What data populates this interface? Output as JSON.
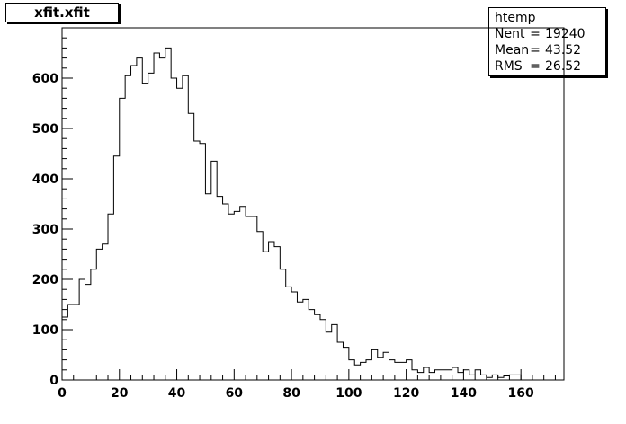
{
  "title_box": {
    "text": "xfit.xfit"
  },
  "stats": {
    "name": "htemp",
    "rows": [
      {
        "label": "Nent",
        "eq": "=",
        "value": "19240"
      },
      {
        "label": "Mean",
        "eq": "=",
        "value": "43.52"
      },
      {
        "label": "RMS",
        "eq": "=",
        "value": "26.52"
      }
    ]
  },
  "chart_data": {
    "type": "histogram",
    "xlim": [
      0,
      175
    ],
    "ylim": [
      0,
      700
    ],
    "bin_width": 2,
    "x_ticks": [
      0,
      20,
      40,
      60,
      80,
      100,
      120,
      140,
      160
    ],
    "y_ticks": [
      0,
      100,
      200,
      300,
      400,
      500,
      600
    ],
    "x_tick_labels": [
      "0",
      "20",
      "40",
      "60",
      "80",
      "100",
      "120",
      "140",
      "160"
    ],
    "y_tick_labels": [
      "0",
      "100",
      "200",
      "300",
      "400",
      "500",
      "600"
    ],
    "bins_x_start": [
      0,
      2,
      4,
      6,
      8,
      10,
      12,
      14,
      16,
      18,
      20,
      22,
      24,
      26,
      28,
      30,
      32,
      34,
      36,
      38,
      40,
      42,
      44,
      46,
      48,
      50,
      52,
      54,
      56,
      58,
      60,
      62,
      64,
      66,
      68,
      70,
      72,
      74,
      76,
      78,
      80,
      82,
      84,
      86,
      88,
      90,
      92,
      94,
      96,
      98,
      100,
      102,
      104,
      106,
      108,
      110,
      112,
      114,
      116,
      118,
      120,
      122,
      124,
      126,
      128,
      130,
      132,
      134,
      136,
      138,
      140,
      142,
      144,
      146,
      148,
      150,
      152,
      154,
      156,
      158
    ],
    "counts": [
      125,
      150,
      150,
      200,
      190,
      220,
      260,
      270,
      330,
      445,
      560,
      605,
      625,
      640,
      590,
      610,
      650,
      640,
      660,
      600,
      580,
      605,
      530,
      475,
      470,
      370,
      435,
      365,
      350,
      330,
      335,
      345,
      325,
      325,
      295,
      255,
      275,
      265,
      220,
      185,
      175,
      155,
      160,
      140,
      130,
      120,
      95,
      110,
      75,
      65,
      40,
      30,
      35,
      40,
      60,
      45,
      55,
      40,
      35,
      35,
      40,
      20,
      15,
      25,
      15,
      20,
      20,
      20,
      25,
      15,
      20,
      10,
      20,
      10,
      5,
      10,
      5,
      8,
      10,
      10
    ]
  }
}
